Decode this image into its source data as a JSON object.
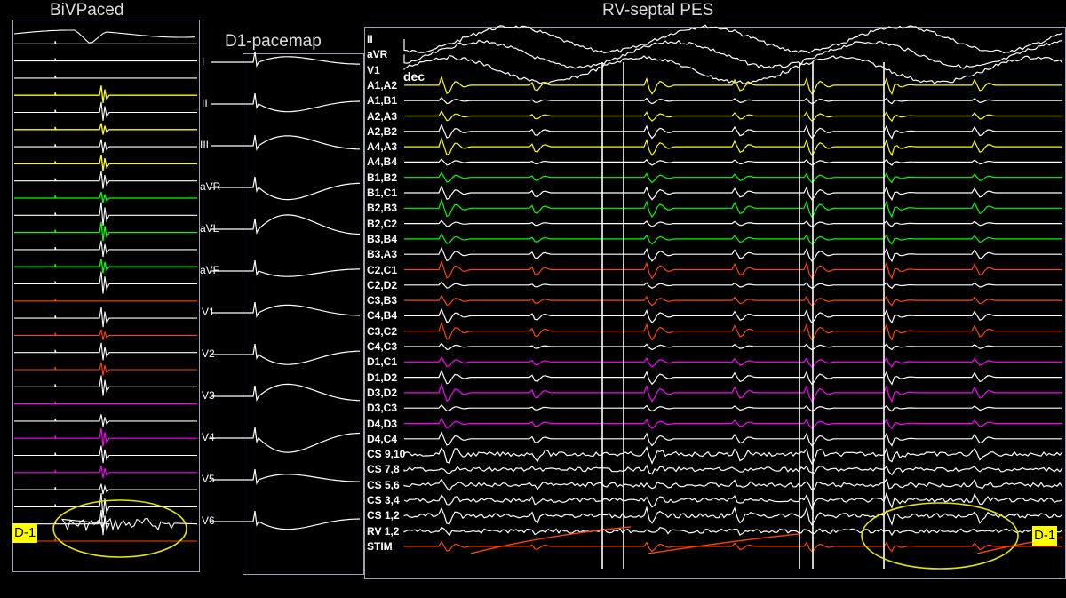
{
  "left_panel": {
    "title": "BiVPaced",
    "tag": "D-1",
    "traces": [
      {
        "color": "#ffffff",
        "shape": "ecg"
      },
      {
        "color": "#ffffff",
        "shape": "flat"
      },
      {
        "color": "#ffffff",
        "shape": "flat"
      },
      {
        "color": "#ffffff",
        "shape": "flat"
      },
      {
        "color": "#ffff00",
        "shape": "spike"
      },
      {
        "color": "#ffffff",
        "shape": "spike"
      },
      {
        "color": "#ffff00",
        "shape": "spike"
      },
      {
        "color": "#ffffff",
        "shape": "spike"
      },
      {
        "color": "#ffff00",
        "shape": "spike"
      },
      {
        "color": "#ffffff",
        "shape": "spike"
      },
      {
        "color": "#00ff00",
        "shape": "spike"
      },
      {
        "color": "#ffffff",
        "shape": "spike"
      },
      {
        "color": "#00ff00",
        "shape": "spike"
      },
      {
        "color": "#ffffff",
        "shape": "spike"
      },
      {
        "color": "#00ff00",
        "shape": "spike"
      },
      {
        "color": "#ffffff",
        "shape": "spike"
      },
      {
        "color": "#ff4500",
        "shape": "flat"
      },
      {
        "color": "#ffffff",
        "shape": "spike"
      },
      {
        "color": "#ff4500",
        "shape": "spike"
      },
      {
        "color": "#ffffff",
        "shape": "spike"
      },
      {
        "color": "#ff4500",
        "shape": "spike"
      },
      {
        "color": "#ffffff",
        "shape": "spike"
      },
      {
        "color": "#ff00ff",
        "shape": "flat"
      },
      {
        "color": "#ffffff",
        "shape": "spike"
      },
      {
        "color": "#ff00ff",
        "shape": "spike"
      },
      {
        "color": "#ffffff",
        "shape": "spike"
      },
      {
        "color": "#ff00ff",
        "shape": "spike"
      },
      {
        "color": "#ffffff",
        "shape": "spike"
      },
      {
        "color": "#ffffff",
        "shape": "spike"
      },
      {
        "color": "#ffffff",
        "shape": "busy"
      },
      {
        "color": "#ff4500",
        "shape": "flat"
      }
    ]
  },
  "middle_panel": {
    "title": "D1-pacemap",
    "leads": [
      "I",
      "II",
      "III",
      "aVR",
      "aVL",
      "aVF",
      "V1",
      "V2",
      "V3",
      "V4",
      "V5",
      "V6"
    ]
  },
  "right_panel": {
    "title": "RV-septal PES",
    "tag": "D-1",
    "annotation": "dec",
    "channels": [
      {
        "label": "II",
        "color": "#ffffff"
      },
      {
        "label": "aVR",
        "color": "#ffffff"
      },
      {
        "label": "V1",
        "color": "#ffffff"
      },
      {
        "label": "A1,A2",
        "color": "#ffff00"
      },
      {
        "label": "A1,B1",
        "color": "#ffffff"
      },
      {
        "label": "A2,A3",
        "color": "#ffff00"
      },
      {
        "label": "A2,B2",
        "color": "#ffffff"
      },
      {
        "label": "A4,A3",
        "color": "#ffff00"
      },
      {
        "label": "A4,B4",
        "color": "#ffffff"
      },
      {
        "label": "B1,B2",
        "color": "#00ff00"
      },
      {
        "label": "B1,C1",
        "color": "#ffffff"
      },
      {
        "label": "B2,B3",
        "color": "#00ff00"
      },
      {
        "label": "B2,C2",
        "color": "#ffffff"
      },
      {
        "label": "B3,B4",
        "color": "#00ff00"
      },
      {
        "label": "B3,A3",
        "color": "#ffffff"
      },
      {
        "label": "C2,C1",
        "color": "#ff4500"
      },
      {
        "label": "C2,D2",
        "color": "#ffffff"
      },
      {
        "label": "C3,B3",
        "color": "#ff4500"
      },
      {
        "label": "C4,B4",
        "color": "#ffffff"
      },
      {
        "label": "C3,C2",
        "color": "#ff4500"
      },
      {
        "label": "C4,C3",
        "color": "#ffffff"
      },
      {
        "label": "D1,C1",
        "color": "#ff00ff"
      },
      {
        "label": "D1,D2",
        "color": "#ffffff"
      },
      {
        "label": "D3,D2",
        "color": "#ff00ff"
      },
      {
        "label": "D3,C3",
        "color": "#ffffff"
      },
      {
        "label": "D4,D3",
        "color": "#ff00ff"
      },
      {
        "label": "D4,C4",
        "color": "#ffffff"
      },
      {
        "label": "CS 9,10",
        "color": "#ffffff"
      },
      {
        "label": "CS 7,8",
        "color": "#ffffff"
      },
      {
        "label": "CS 5,6",
        "color": "#ffffff"
      },
      {
        "label": "CS 3,4",
        "color": "#ffffff"
      },
      {
        "label": "CS 1,2",
        "color": "#ffffff"
      },
      {
        "label": "RV 1,2",
        "color": "#ffffff"
      },
      {
        "label": "STIM",
        "color": "#ff4500"
      }
    ]
  },
  "colors": {
    "background": "#000000",
    "highlight_ellipse": "#e6e600",
    "tag_bg": "#ffff00",
    "frame": "#9aa3b0"
  }
}
